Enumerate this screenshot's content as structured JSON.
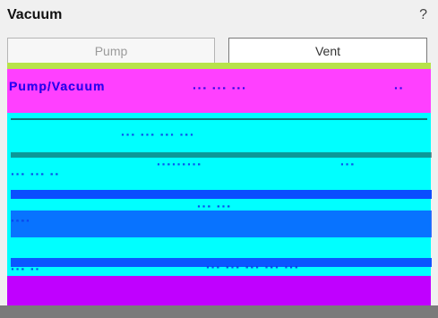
{
  "header": {
    "title": "Vacuum",
    "help": "?"
  },
  "buttons": {
    "pump_label": "Pump",
    "vent_label": "Vent"
  },
  "glitch_text": {
    "row1_left": "Pump/Vacuum",
    "row1_mid": "··· ··· ···",
    "row1_right": "··",
    "row2": "··· ··· ··· ···",
    "row3_left": "··· ··· ··",
    "row3_mid": "·········",
    "row3_right": "···",
    "row4_left": "····",
    "row4_mid": "··· ···",
    "row5_left": "··· ··",
    "row5_mid": "··· ··· ··· ··· ···"
  },
  "colors": {
    "top_band": "#b7e34b",
    "pink_band": "#ff40ff",
    "cyan_band": "#00ffff",
    "purple_band": "#c000ff",
    "blue_stripes": "#0b44ff",
    "baseline": "#7a7a7a"
  }
}
